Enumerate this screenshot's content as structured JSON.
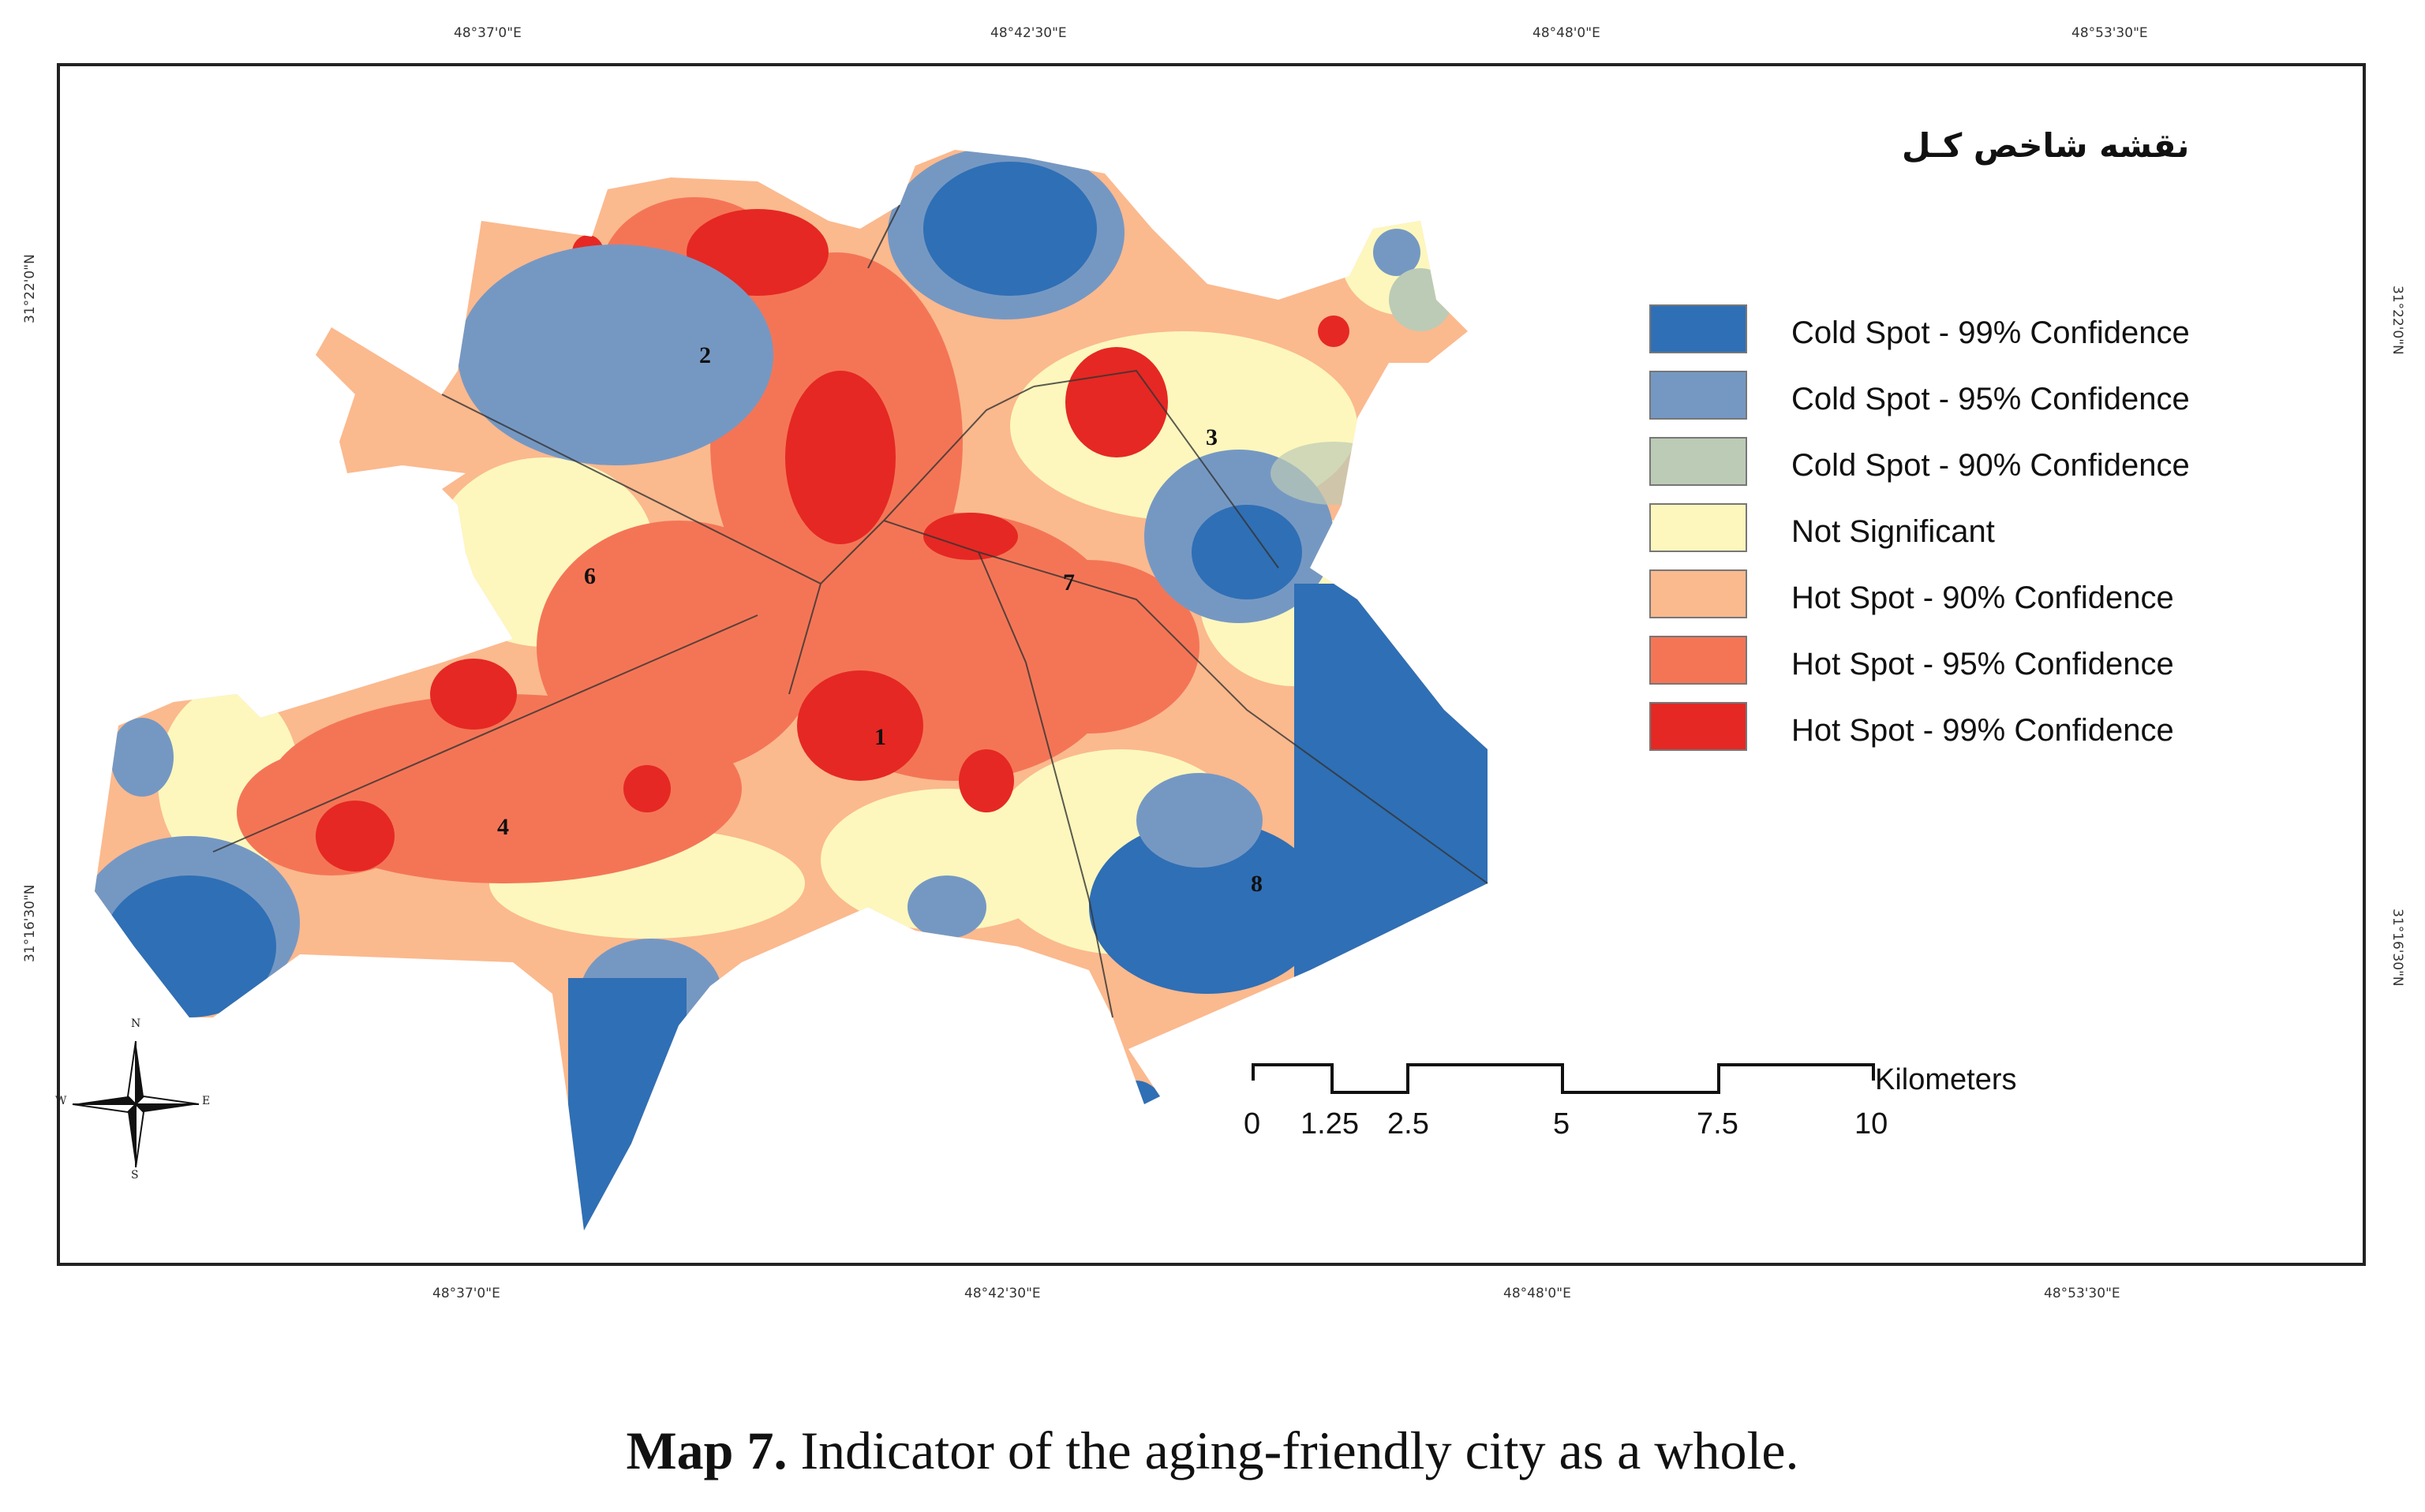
{
  "map_title": "نقشه شاخص کـل",
  "graticule": {
    "top": [
      "48°37'0\"E",
      "48°42'30\"E",
      "48°48'0\"E",
      "48°53'30\"E"
    ],
    "bottom": [
      "48°37'0\"E",
      "48°42'30\"E",
      "48°48'0\"E",
      "48°53'30\"E"
    ],
    "left": [
      "31°22'0\"N",
      "31°16'30\"N"
    ],
    "right": [
      "31°22'0\"N",
      "31°16'30\"N"
    ]
  },
  "districts": [
    "1",
    "2",
    "3",
    "4",
    "6",
    "7",
    "8"
  ],
  "legend": [
    {
      "label": "Cold Spot - 99% Confidence",
      "color": "#2f6fb5"
    },
    {
      "label": "Cold Spot - 95% Confidence",
      "color": "#7598c3"
    },
    {
      "label": "Cold Spot - 90% Confidence",
      "color": "#bccbb6"
    },
    {
      "label": "Not Significant",
      "color": "#fdf7bd"
    },
    {
      "label": "Hot Spot - 90% Confidence",
      "color": "#fbb98e"
    },
    {
      "label": "Hot Spot - 95% Confidence",
      "color": "#f47556"
    },
    {
      "label": "Hot Spot - 99% Confidence",
      "color": "#e52823"
    }
  ],
  "scale_bar": {
    "unit": "Kilometers",
    "ticks": [
      "0",
      "1.25",
      "2.5",
      "5",
      "7.5",
      "10"
    ]
  },
  "compass": {
    "n": "N",
    "s": "S",
    "e": "E",
    "w": "W"
  },
  "caption": {
    "label": "Map 7.",
    "text": " Indicator of the aging-friendly city as a whole."
  }
}
